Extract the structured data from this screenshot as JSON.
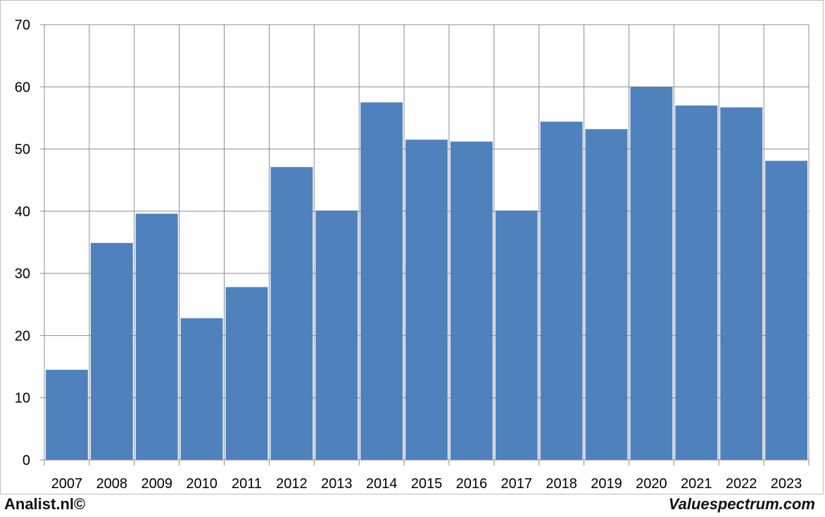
{
  "footer": {
    "left_brand": "Analist.nl©",
    "right_brand": "Valuespectrum.com"
  },
  "colors": {
    "bar": "#4f81bd",
    "grid": "#8c8c8c",
    "axis_text": "#000000"
  },
  "chart_data": {
    "type": "bar",
    "title": "",
    "xlabel": "",
    "ylabel": "",
    "categories": [
      "2007",
      "2008",
      "2009",
      "2010",
      "2011",
      "2012",
      "2013",
      "2014",
      "2015",
      "2016",
      "2017",
      "2018",
      "2019",
      "2020",
      "2021",
      "2022",
      "2023"
    ],
    "values": [
      14.5,
      34.9,
      39.6,
      22.8,
      27.8,
      47.1,
      40.1,
      57.5,
      51.5,
      51.2,
      40.1,
      54.4,
      53.2,
      60.0,
      57.0,
      56.7,
      48.1
    ],
    "ylim": [
      0,
      70
    ],
    "yticks": [
      0,
      10,
      20,
      30,
      40,
      50,
      60,
      70
    ],
    "grid": true,
    "legend": "none"
  }
}
